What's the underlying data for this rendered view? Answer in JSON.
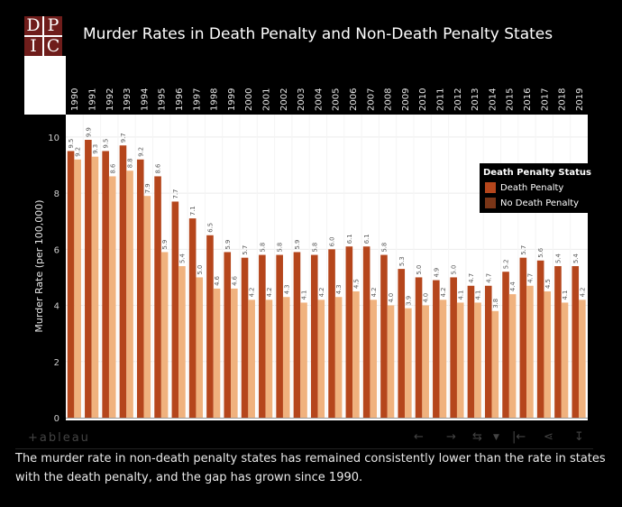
{
  "logo": {
    "letters": [
      "D",
      "P",
      "I",
      "C"
    ],
    "bg_color": "#6f1d1b"
  },
  "header": {
    "title": "Murder Rates in Death Penalty and Non-Death Penalty States"
  },
  "legend": {
    "title": "Death Penalty Status",
    "items": [
      {
        "label": "Death Penalty",
        "color": "#b5461c"
      },
      {
        "label": "No Death Penalty",
        "color": "#7a3517"
      }
    ]
  },
  "toolbar": {
    "brand": "+ableau",
    "icons": [
      "tableau-logo-icon",
      "undo-icon",
      "redo-icon",
      "revert-icon",
      "dropdown-icon",
      "pause-icon",
      "share-icon",
      "download-icon"
    ]
  },
  "caption": "The murder rate in non-death penalty states has remained consistently lower than the rate in states with the death penalty, and the gap has grown since 1990.",
  "chart_data": {
    "type": "bar",
    "ylabel": "Murder Rate (per 100,000)",
    "ylim": [
      0,
      10.8
    ],
    "yticks": [
      0,
      2,
      4,
      6,
      8,
      10
    ],
    "grid": true,
    "legend_position": "right",
    "categories": [
      "1990",
      "1991",
      "1992",
      "1993",
      "1994",
      "1995",
      "1996",
      "1997",
      "1998",
      "1999",
      "2000",
      "2001",
      "2002",
      "2003",
      "2004",
      "2005",
      "2006",
      "2007",
      "2008",
      "2009",
      "2010",
      "2011",
      "2012",
      "2013",
      "2014",
      "2015",
      "2016",
      "2017",
      "2018",
      "2019"
    ],
    "series": [
      {
        "name": "Death Penalty",
        "color": "#b5461c",
        "values": [
          9.5,
          9.9,
          9.5,
          9.7,
          9.2,
          8.6,
          7.7,
          7.1,
          6.5,
          5.9,
          5.7,
          5.8,
          5.8,
          5.9,
          5.8,
          6.0,
          6.1,
          6.1,
          5.8,
          5.3,
          5.0,
          4.9,
          5.0,
          4.7,
          4.7,
          5.2,
          5.7,
          5.6,
          5.4,
          5.4
        ]
      },
      {
        "name": "",
        "color": "#f0b27e",
        "values": [
          9.2,
          9.3,
          8.6,
          8.8,
          7.9,
          5.9,
          5.4,
          5.0,
          4.6,
          4.6,
          4.2,
          4.2,
          4.3,
          4.1,
          4.2,
          4.3,
          4.5,
          4.2,
          4.0,
          3.9,
          4.0,
          4.2,
          4.1,
          4.1,
          3.8,
          4.4,
          4.7,
          4.5,
          4.1,
          4.2
        ]
      }
    ]
  }
}
